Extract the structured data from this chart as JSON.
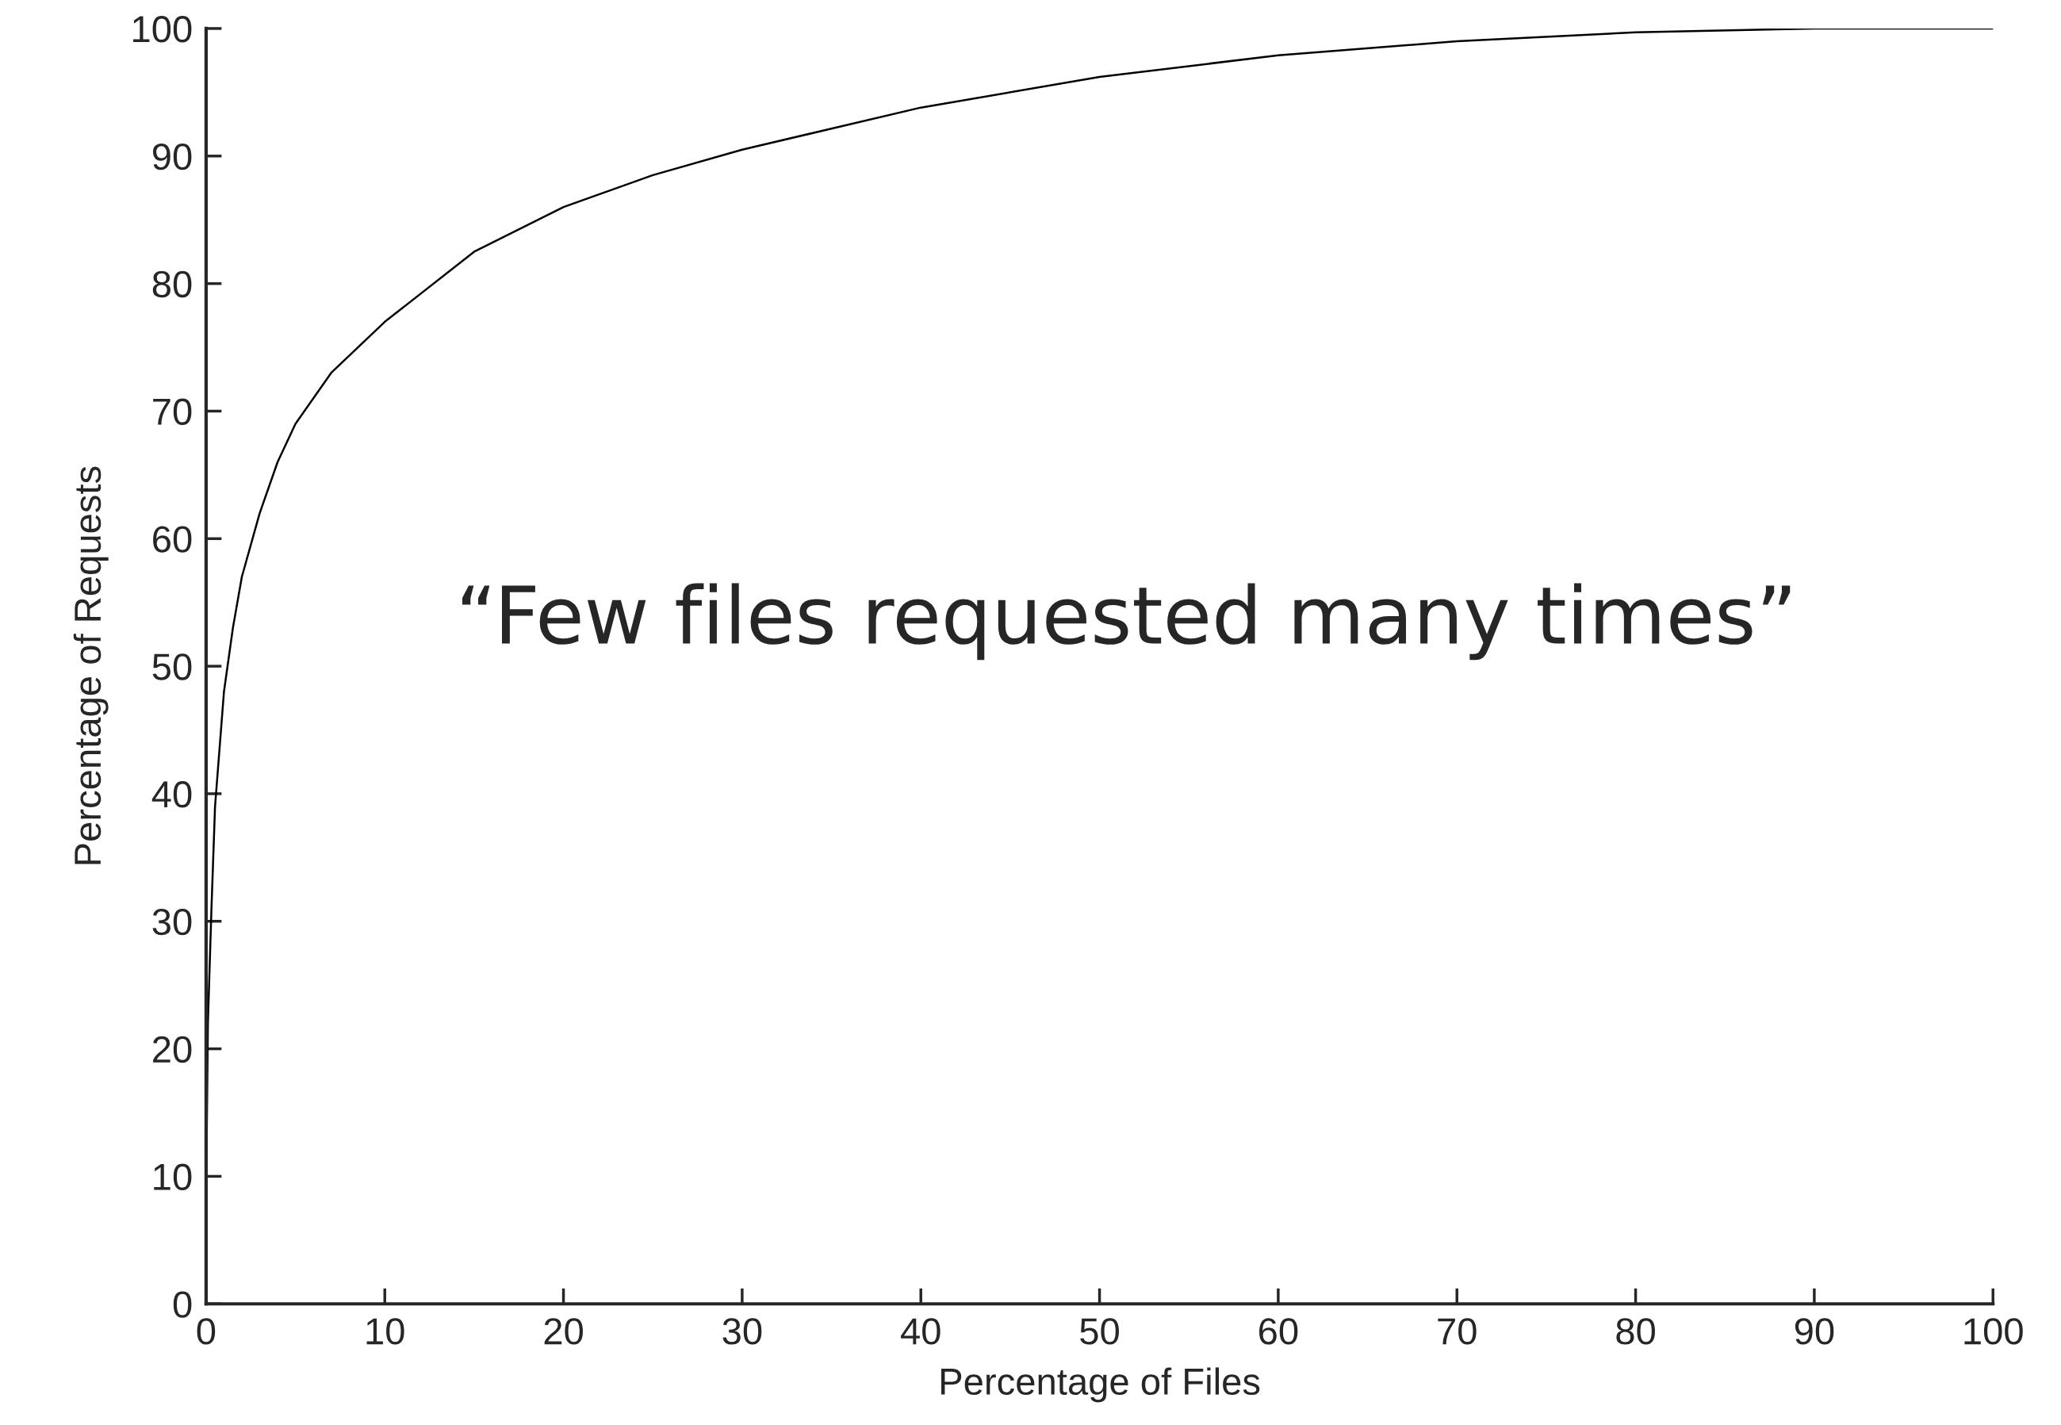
{
  "chart_data": {
    "type": "line",
    "xlabel": "Percentage of Files",
    "ylabel": "Percentage of Requests",
    "x": [
      0,
      0.1,
      0.3,
      0.5,
      1,
      1.5,
      2,
      3,
      4,
      5,
      7,
      10,
      15,
      20,
      25,
      30,
      40,
      50,
      60,
      70,
      80,
      90,
      100
    ],
    "series": [
      {
        "color": "#000000",
        "values": [
          8,
          22,
          31,
          39,
          48,
          53,
          57,
          62,
          66,
          69,
          73,
          77,
          82.5,
          86,
          88.5,
          90.5,
          93.8,
          96.2,
          97.9,
          99,
          99.7,
          100,
          100
        ]
      }
    ],
    "xlim": [
      0,
      100
    ],
    "ylim": [
      0,
      100
    ],
    "xticks": [
      0,
      10,
      20,
      30,
      40,
      50,
      60,
      70,
      80,
      90,
      100
    ],
    "yticks": [
      0,
      10,
      20,
      30,
      40,
      50,
      60,
      70,
      80,
      90,
      100
    ],
    "annotations": [
      "“Few files requested many times”"
    ],
    "grid": false,
    "legend": false,
    "marker": "none",
    "line_style": "solid"
  }
}
